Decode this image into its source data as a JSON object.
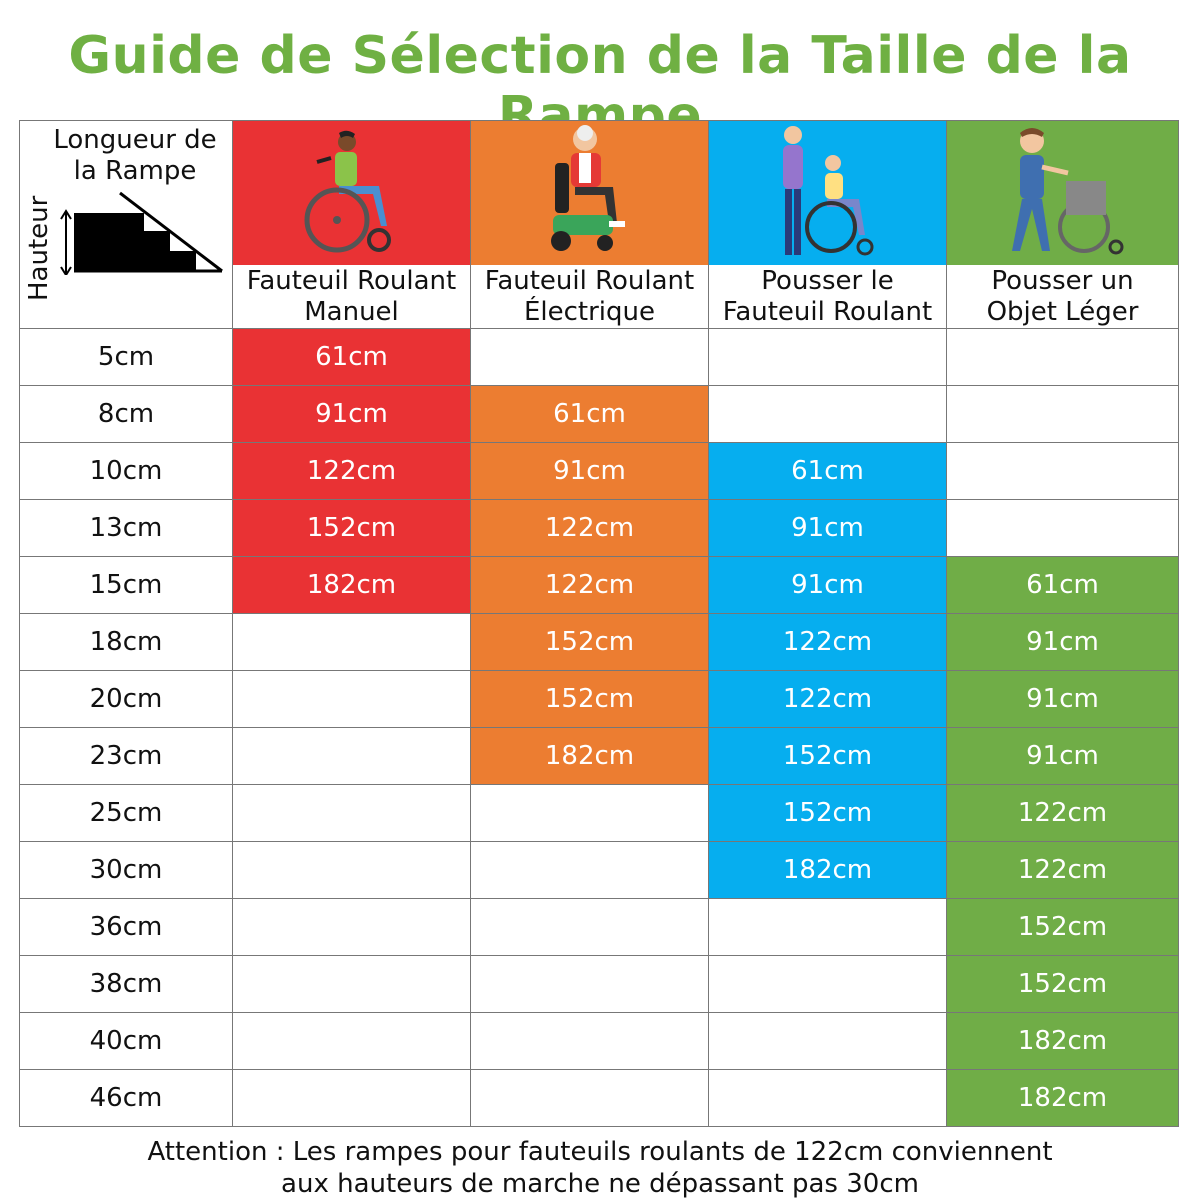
{
  "title": "Guide de Sélection de la Taille de la Rampe",
  "corner": {
    "length_label": "Longueur de la Rampe",
    "height_label": "Hauteur"
  },
  "columns": [
    {
      "label_1": "Fauteuil Roulant",
      "label_2": "Manuel",
      "color": "#e93234",
      "icon": "manual-wheelchair-user-icon"
    },
    {
      "label_1": "Fauteuil Roulant",
      "label_2": "Électrique",
      "color": "#ec7d31",
      "icon": "electric-wheelchair-user-icon"
    },
    {
      "label_1": "Pousser le",
      "label_2": "Fauteuil Roulant",
      "color": "#06aeef",
      "icon": "pushing-wheelchair-icon"
    },
    {
      "label_1": "Pousser un",
      "label_2": "Objet Léger",
      "color": "#70ad47",
      "icon": "pushing-light-object-icon"
    }
  ],
  "rows": [
    {
      "height": "5cm",
      "values": [
        "61cm",
        "",
        "",
        ""
      ]
    },
    {
      "height": "8cm",
      "values": [
        "91cm",
        "61cm",
        "",
        ""
      ]
    },
    {
      "height": "10cm",
      "values": [
        "122cm",
        "91cm",
        "61cm",
        ""
      ]
    },
    {
      "height": "13cm",
      "values": [
        "152cm",
        "122cm",
        "91cm",
        ""
      ]
    },
    {
      "height": "15cm",
      "values": [
        "182cm",
        "122cm",
        "91cm",
        "61cm"
      ]
    },
    {
      "height": "18cm",
      "values": [
        "",
        "152cm",
        "122cm",
        "91cm"
      ]
    },
    {
      "height": "20cm",
      "values": [
        "",
        "152cm",
        "122cm",
        "91cm"
      ]
    },
    {
      "height": "23cm",
      "values": [
        "",
        "182cm",
        "152cm",
        "91cm"
      ]
    },
    {
      "height": "25cm",
      "values": [
        "",
        "",
        "152cm",
        "122cm"
      ]
    },
    {
      "height": "30cm",
      "values": [
        "",
        "",
        "182cm",
        "122cm"
      ]
    },
    {
      "height": "36cm",
      "values": [
        "",
        "",
        "",
        "152cm"
      ]
    },
    {
      "height": "38cm",
      "values": [
        "",
        "",
        "",
        "152cm"
      ]
    },
    {
      "height": "40cm",
      "values": [
        "",
        "",
        "",
        "182cm"
      ]
    },
    {
      "height": "46cm",
      "values": [
        "",
        "",
        "",
        "182cm"
      ]
    }
  ],
  "note": {
    "line_1": "Attention : Les rampes pour fauteuils roulants de 122cm conviennent",
    "line_2": "aux hauteurs de marche ne dépassant pas 30cm"
  }
}
